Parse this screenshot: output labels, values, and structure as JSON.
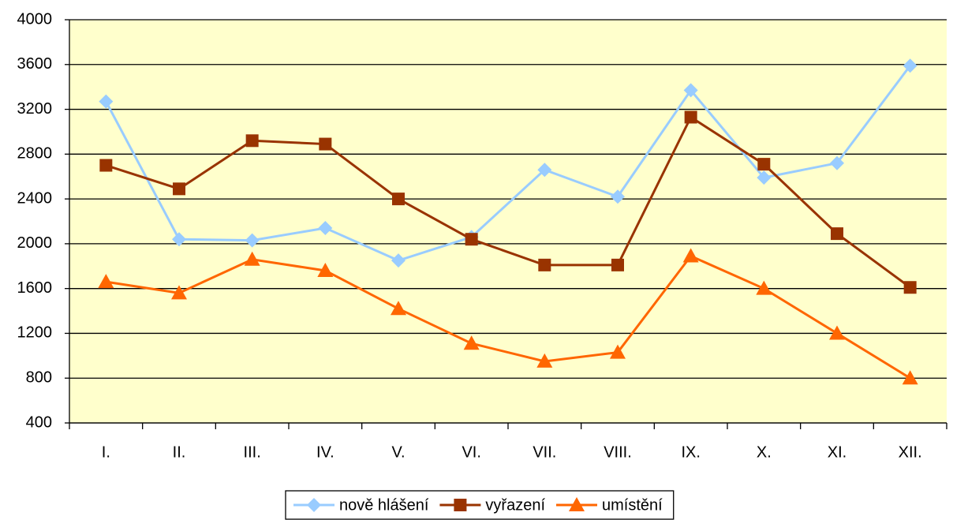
{
  "chart_data": {
    "type": "line",
    "categories": [
      "I.",
      "II.",
      "III.",
      "IV.",
      "V.",
      "VI.",
      "VII.",
      "VIII.",
      "IX.",
      "X.",
      "XI.",
      "XII."
    ],
    "series": [
      {
        "name": "nově hlášení",
        "color": "#99ccff",
        "marker": "diamond",
        "values": [
          3270,
          2040,
          2030,
          2140,
          1850,
          2060,
          2660,
          2420,
          3370,
          2590,
          2720,
          3590
        ]
      },
      {
        "name": "vyřazení",
        "color": "#993300",
        "marker": "square",
        "values": [
          2700,
          2490,
          2920,
          2890,
          2400,
          2040,
          1810,
          1810,
          3130,
          2710,
          2090,
          1610
        ]
      },
      {
        "name": "umístění",
        "color": "#ff6600",
        "marker": "triangle",
        "values": [
          1660,
          1560,
          1860,
          1760,
          1420,
          1110,
          950,
          1030,
          1890,
          1600,
          1200,
          800
        ]
      }
    ],
    "ylim": [
      400,
      4000
    ],
    "yticks": [
      400,
      800,
      1200,
      1600,
      2000,
      2400,
      2800,
      3200,
      3600,
      4000
    ],
    "grid": true,
    "legend": "bottom",
    "background": "#ffffcc"
  }
}
